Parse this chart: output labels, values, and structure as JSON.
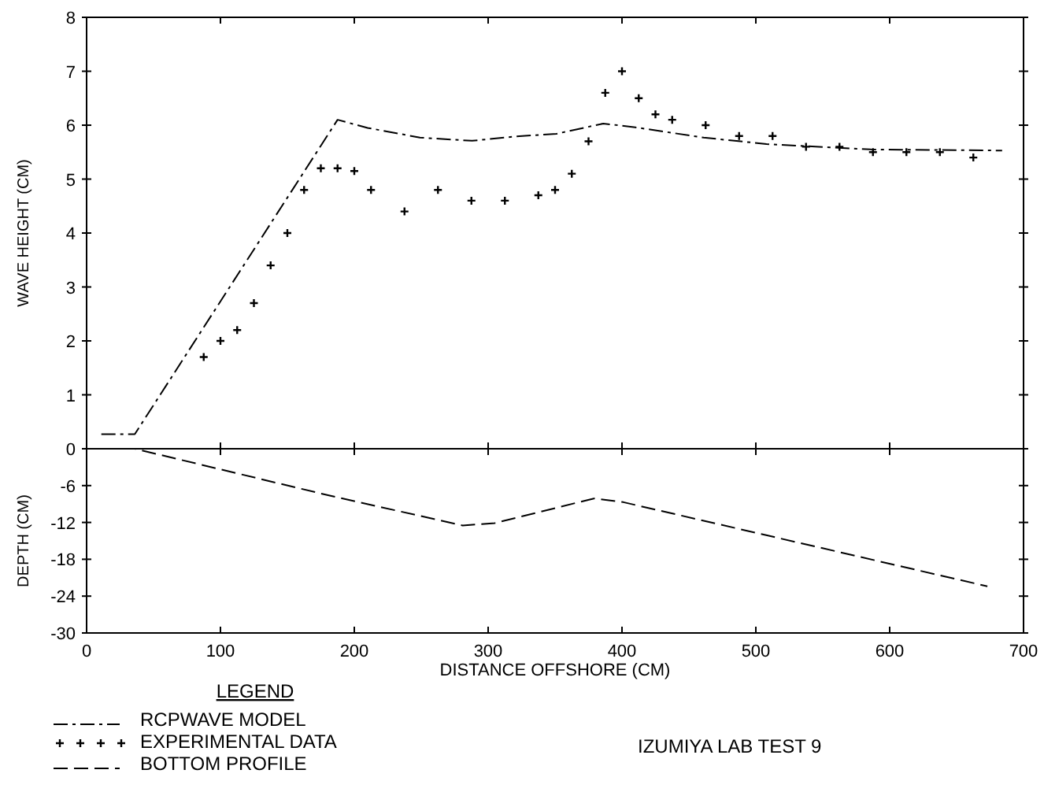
{
  "chart_data": [
    {
      "type": "line",
      "ylabel": "WAVE HEIGHT (CM)",
      "xlim": [
        0,
        700
      ],
      "xticks": [
        0,
        100,
        200,
        300,
        400,
        500,
        600,
        700
      ],
      "ylim": [
        0,
        8
      ],
      "yticks": [
        0,
        1,
        2,
        3,
        4,
        5,
        6,
        7,
        8
      ],
      "tick_labels": "y",
      "legend": "bottom",
      "legend_title": "LEGEND",
      "series": [
        {
          "name": "RCPWAVE MODEL",
          "color": "#000000",
          "line_style": "dashdot",
          "x": [
            11,
            36,
            187.5,
            210,
            249,
            288,
            320,
            351,
            386,
            410,
            461,
            508,
            586,
            684
          ],
          "values": [
            0.27,
            0.27,
            6.1,
            5.95,
            5.77,
            5.71,
            5.79,
            5.84,
            6.03,
            5.96,
            5.77,
            5.65,
            5.55,
            5.53
          ]
        },
        {
          "name": "EXPERIMENTAL DATA",
          "type": "scatter",
          "marker": "cross",
          "color": "#000000",
          "x": [
            87.5,
            100,
            112.5,
            125,
            137.5,
            150,
            162.5,
            175,
            187.5,
            200,
            212.5,
            237.5,
            262.5,
            287.5,
            312.5,
            337.5,
            350,
            362.5,
            375,
            387.5,
            400,
            412.5,
            425,
            437.5,
            462.5,
            487.5,
            512.5,
            537.5,
            562.5,
            587.5,
            612.5,
            637.5,
            662.5
          ],
          "values": [
            1.7,
            2.0,
            2.2,
            2.7,
            3.4,
            4.0,
            4.8,
            5.2,
            5.2,
            5.15,
            4.8,
            4.4,
            4.8,
            4.6,
            4.6,
            4.7,
            4.8,
            5.1,
            5.7,
            6.6,
            7.0,
            6.5,
            6.2,
            6.1,
            6.0,
            5.8,
            5.8,
            5.6,
            5.6,
            5.5,
            5.5,
            5.5,
            5.4
          ]
        }
      ]
    },
    {
      "type": "line",
      "ylabel": "DEPTH (CM)",
      "xlabel": "DISTANCE OFFSHORE (CM)",
      "xlim": [
        0,
        700
      ],
      "xticks": [
        0,
        100,
        200,
        300,
        400,
        500,
        600,
        700
      ],
      "ylim": [
        -30,
        0
      ],
      "yticks": [
        -30,
        -24,
        -18,
        -12,
        -6
      ],
      "legend": "bottom",
      "annotations": [
        "IZUMIYA LAB TEST 9"
      ],
      "series": [
        {
          "name": "BOTTOM PROFILE",
          "color": "#000000",
          "line_style": "dashed",
          "x": [
            11,
            36,
            181,
            281,
            305,
            379,
            401,
            673
          ],
          "values": [
            0,
            0,
            -7.6,
            -12.5,
            -12.1,
            -8.1,
            -8.7,
            -22.4
          ]
        }
      ]
    }
  ]
}
